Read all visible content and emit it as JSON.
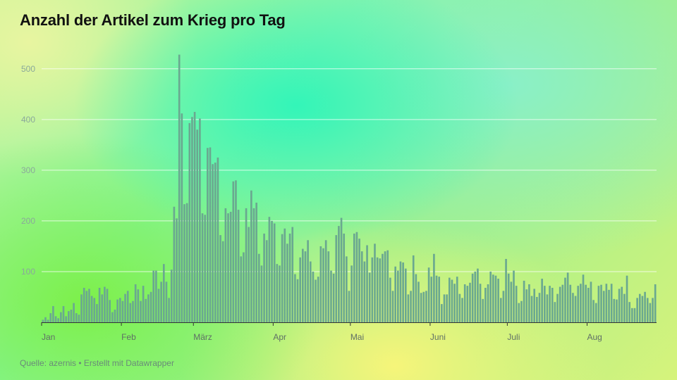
{
  "chart_data": {
    "type": "bar",
    "title": "Anzahl der Artikel zum Krieg pro Tag",
    "xlabel": "",
    "ylabel": "",
    "ylim": [
      0,
      560
    ],
    "y_ticks": [
      "100",
      "200",
      "300",
      "400",
      "500"
    ],
    "x_ticks": [
      {
        "label": "Jan",
        "day": 1
      },
      {
        "label": "Feb",
        "day": 32
      },
      {
        "label": "März",
        "day": 60
      },
      {
        "label": "Apr",
        "day": 91
      },
      {
        "label": "Mai",
        "day": 121
      },
      {
        "label": "Juni",
        "day": 152
      },
      {
        "label": "Juli",
        "day": 182
      },
      {
        "label": "Aug",
        "day": 213
      }
    ],
    "bar_color": "#6aa890",
    "grid": true,
    "values": [
      5,
      10,
      5,
      18,
      32,
      12,
      8,
      20,
      32,
      12,
      22,
      25,
      38,
      18,
      15,
      55,
      68,
      62,
      66,
      52,
      48,
      36,
      68,
      55,
      70,
      66,
      44,
      20,
      25,
      45,
      48,
      42,
      56,
      62,
      38,
      42,
      75,
      65,
      42,
      72,
      46,
      55,
      60,
      102,
      102,
      66,
      80,
      115,
      80,
      48,
      104,
      228,
      205,
      528,
      412,
      233,
      235,
      393,
      405,
      415,
      380,
      402,
      215,
      212,
      344,
      345,
      312,
      315,
      325,
      172,
      160,
      225,
      215,
      218,
      278,
      280,
      222,
      130,
      138,
      225,
      188,
      260,
      225,
      236,
      135,
      112,
      175,
      162,
      208,
      200,
      195,
      115,
      112,
      174,
      185,
      155,
      175,
      188,
      95,
      85,
      128,
      145,
      140,
      162,
      120,
      100,
      84,
      90,
      150,
      146,
      162,
      140,
      102,
      96,
      172,
      190,
      206,
      175,
      130,
      62,
      112,
      175,
      178,
      165,
      140,
      120,
      152,
      98,
      128,
      155,
      128,
      126,
      135,
      140,
      142,
      88,
      62,
      110,
      102,
      120,
      118,
      106,
      55,
      62,
      132,
      95,
      80,
      58,
      60,
      62,
      108,
      90,
      135,
      92,
      90,
      36,
      55,
      55,
      88,
      84,
      76,
      90,
      56,
      48,
      75,
      72,
      78,
      96,
      100,
      106,
      76,
      46,
      68,
      75,
      100,
      94,
      92,
      86,
      48,
      62,
      125,
      96,
      80,
      102,
      72,
      38,
      42,
      82,
      65,
      75,
      52,
      66,
      50,
      58,
      86,
      72,
      55,
      72,
      68,
      40,
      56,
      70,
      74,
      88,
      98,
      74,
      58,
      52,
      72,
      76,
      94,
      74,
      68,
      80,
      44,
      38,
      72,
      74,
      62,
      76,
      64,
      76,
      46,
      45,
      66,
      70,
      56,
      92,
      40,
      28,
      28,
      48,
      56,
      52,
      60,
      48,
      38,
      48,
      75
    ]
  },
  "source": "Quelle: azernis • Erstellt mit Datawrapper"
}
